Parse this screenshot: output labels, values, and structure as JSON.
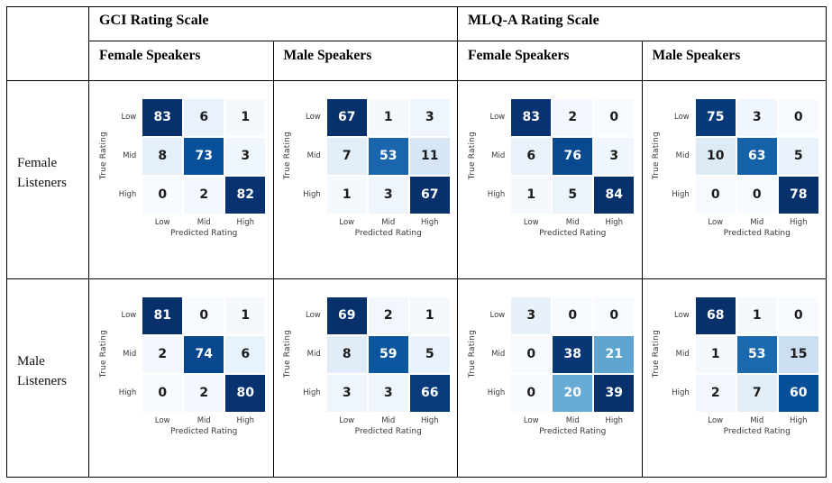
{
  "table": {
    "corner_label": "",
    "col_groups": [
      {
        "label": "GCI Rating Scale"
      },
      {
        "label": "MLQ-A Rating Scale"
      }
    ],
    "col_headers": [
      "Female Speakers",
      "Male Speakers",
      "Female Speakers",
      "Male Speakers"
    ],
    "row_headers": [
      "Female Listeners",
      "Male Listeners"
    ]
  },
  "colors": {
    "heatmap_min": "#f7fbff",
    "heatmap_max": "#08306b",
    "annotation_light_cell_text": "#1c1c1c",
    "annotation_dark_cell_text": "#ffffff",
    "axis_text": "#3a3a3a",
    "table_border": "#000000"
  },
  "chart_data": [
    {
      "type": "heatmap",
      "listener_group": "Female Listeners",
      "rating_scale": "GCI Rating Scale",
      "speaker_group": "Female Speakers",
      "xlabel": "Predicted Rating",
      "ylabel": "True Rating",
      "x_categories": [
        "Low",
        "Mid",
        "High"
      ],
      "y_categories": [
        "Low",
        "Mid",
        "High"
      ],
      "values": [
        [
          83,
          6,
          1
        ],
        [
          8,
          73,
          3
        ],
        [
          0,
          2,
          82
        ]
      ],
      "colormap": "Blues"
    },
    {
      "type": "heatmap",
      "listener_group": "Female Listeners",
      "rating_scale": "GCI Rating Scale",
      "speaker_group": "Male Speakers",
      "xlabel": "Predicted Rating",
      "ylabel": "True Rating",
      "x_categories": [
        "Low",
        "Mid",
        "High"
      ],
      "y_categories": [
        "Low",
        "Mid",
        "High"
      ],
      "values": [
        [
          67,
          1,
          3
        ],
        [
          7,
          53,
          11
        ],
        [
          1,
          3,
          67
        ]
      ],
      "colormap": "Blues"
    },
    {
      "type": "heatmap",
      "listener_group": "Female Listeners",
      "rating_scale": "MLQ-A Rating Scale",
      "speaker_group": "Female Speakers",
      "xlabel": "Predicted Rating",
      "ylabel": "True Rating",
      "x_categories": [
        "Low",
        "Mid",
        "High"
      ],
      "y_categories": [
        "Low",
        "Mid",
        "High"
      ],
      "values": [
        [
          83,
          2,
          0
        ],
        [
          6,
          76,
          3
        ],
        [
          1,
          5,
          84
        ]
      ],
      "colormap": "Blues"
    },
    {
      "type": "heatmap",
      "listener_group": "Female Listeners",
      "rating_scale": "MLQ-A Rating Scale",
      "speaker_group": "Male Speakers",
      "xlabel": "Predicted Rating",
      "ylabel": "True Rating",
      "x_categories": [
        "Low",
        "Mid",
        "High"
      ],
      "y_categories": [
        "Low",
        "Mid",
        "High"
      ],
      "values": [
        [
          75,
          3,
          0
        ],
        [
          10,
          63,
          5
        ],
        [
          0,
          0,
          78
        ]
      ],
      "colormap": "Blues"
    },
    {
      "type": "heatmap",
      "listener_group": "Male Listeners",
      "rating_scale": "GCI Rating Scale",
      "speaker_group": "Female Speakers",
      "xlabel": "Predicted Rating",
      "ylabel": "True Rating",
      "x_categories": [
        "Low",
        "Mid",
        "High"
      ],
      "y_categories": [
        "Low",
        "Mid",
        "High"
      ],
      "values": [
        [
          81,
          0,
          1
        ],
        [
          2,
          74,
          6
        ],
        [
          0,
          2,
          80
        ]
      ],
      "colormap": "Blues"
    },
    {
      "type": "heatmap",
      "listener_group": "Male Listeners",
      "rating_scale": "GCI Rating Scale",
      "speaker_group": "Male Speakers",
      "xlabel": "Predicted Rating",
      "ylabel": "True Rating",
      "x_categories": [
        "Low",
        "Mid",
        "High"
      ],
      "y_categories": [
        "Low",
        "Mid",
        "High"
      ],
      "values": [
        [
          69,
          2,
          1
        ],
        [
          8,
          59,
          5
        ],
        [
          3,
          3,
          66
        ]
      ],
      "colormap": "Blues"
    },
    {
      "type": "heatmap",
      "listener_group": "Male Listeners",
      "rating_scale": "MLQ-A Rating Scale",
      "speaker_group": "Female Speakers",
      "xlabel": "Predicted Rating",
      "ylabel": "True Rating",
      "x_categories": [
        "Low",
        "Mid",
        "High"
      ],
      "y_categories": [
        "Low",
        "Mid",
        "High"
      ],
      "values": [
        [
          3,
          0,
          0
        ],
        [
          0,
          38,
          21
        ],
        [
          0,
          20,
          39
        ]
      ],
      "colormap": "Blues"
    },
    {
      "type": "heatmap",
      "listener_group": "Male Listeners",
      "rating_scale": "MLQ-A Rating Scale",
      "speaker_group": "Male Speakers",
      "xlabel": "Predicted Rating",
      "ylabel": "True Rating",
      "x_categories": [
        "Low",
        "Mid",
        "High"
      ],
      "y_categories": [
        "Low",
        "Mid",
        "High"
      ],
      "values": [
        [
          68,
          1,
          0
        ],
        [
          1,
          53,
          15
        ],
        [
          2,
          7,
          60
        ]
      ],
      "colormap": "Blues"
    }
  ]
}
